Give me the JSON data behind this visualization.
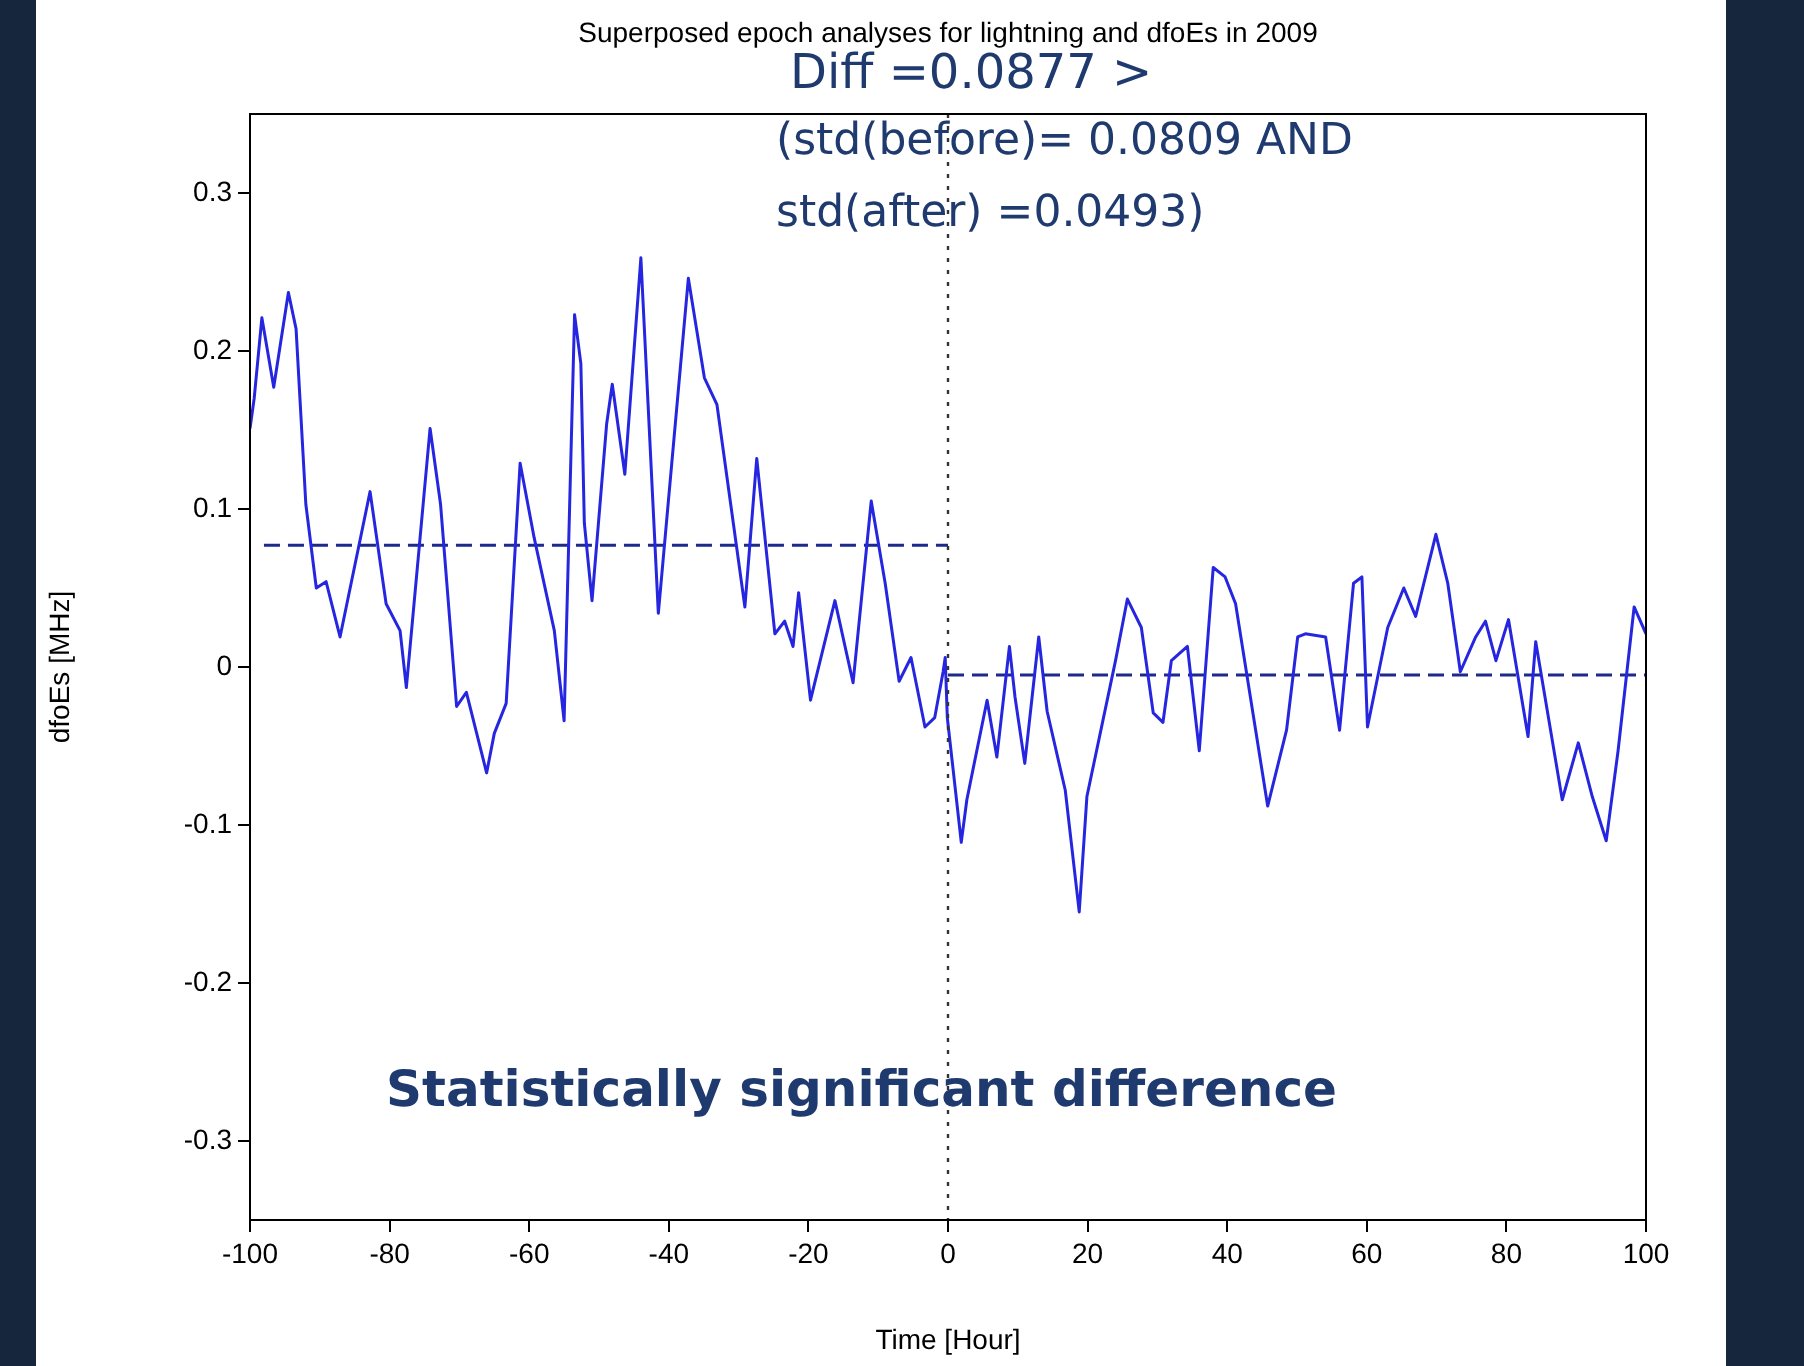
{
  "chart_data": {
    "type": "line",
    "title": "Superposed epoch analyses for lightning and dfoEs in 2009",
    "xlabel": "Time [Hour]",
    "ylabel": "dfoEs [MHz]",
    "xlim": [
      -100,
      100
    ],
    "xticks": [
      -100,
      -80,
      -60,
      -40,
      -20,
      0,
      20,
      40,
      60,
      80,
      100
    ],
    "ylim": [
      -0.35,
      0.35
    ],
    "yticks": [
      -0.3,
      -0.2,
      -0.1,
      0,
      0.1,
      0.2,
      0.3
    ],
    "grid": false,
    "legend": false,
    "marker": "none",
    "series": [
      {
        "color": "#2626e0",
        "line_style": "solid",
        "x": [
          -100,
          -99.4,
          -98.3,
          -96.6,
          -94.5,
          -93.4,
          -92,
          -90.5,
          -89.1,
          -87.1,
          -82.8,
          -80.5,
          -78.5,
          -77.6,
          -74.2,
          -72.7,
          -70.4,
          -69,
          -66.1,
          -65,
          -63.3,
          -61.3,
          -59.3,
          -56.4,
          -55,
          -53.5,
          -52.6,
          -52.1,
          -51,
          -48.9,
          -48.1,
          -46.3,
          -44,
          -41.5,
          -37.2,
          -34.9,
          -33.1,
          -29.1,
          -27.4,
          -24.8,
          -23.4,
          -22.2,
          -21.4,
          -19.7,
          -16.2,
          -13.6,
          -11,
          -9,
          -7,
          -5.3,
          -3.3,
          -1.9,
          -0.7,
          -0.4,
          -0.1,
          1.9,
          2.7,
          5.6,
          7,
          8.8,
          9.6,
          11,
          13,
          14.2,
          16.8,
          18.8,
          19.9,
          24,
          25.7,
          27.7,
          29.4,
          30.8,
          32,
          34.3,
          36,
          38,
          39.7,
          41.2,
          45.8,
          48.5,
          50.1,
          51.2,
          54.1,
          56.1,
          58.1,
          59.3,
          60.1,
          63,
          65.3,
          67,
          69.9,
          71.6,
          73.4,
          75.6,
          77,
          78.5,
          80.3,
          83.1,
          84.2,
          88,
          90.3,
          92.3,
          94.3,
          96,
          98.3,
          100
        ],
        "values": [
          0.151,
          0.17,
          0.221,
          0.177,
          0.237,
          0.214,
          0.103,
          0.05,
          0.054,
          0.019,
          0.111,
          0.04,
          0.023,
          -0.013,
          0.151,
          0.103,
          -0.025,
          -0.016,
          -0.067,
          -0.042,
          -0.023,
          0.129,
          0.082,
          0.023,
          -0.034,
          0.223,
          0.192,
          0.091,
          0.042,
          0.154,
          0.179,
          0.122,
          0.259,
          0.034,
          0.246,
          0.183,
          0.166,
          0.038,
          0.132,
          0.021,
          0.029,
          0.013,
          0.047,
          -0.021,
          0.042,
          -0.01,
          0.105,
          0.053,
          -0.009,
          0.006,
          -0.038,
          -0.032,
          -0.003,
          0.006,
          -0.032,
          -0.111,
          -0.084,
          -0.021,
          -0.057,
          0.013,
          -0.019,
          -0.061,
          0.019,
          -0.028,
          -0.078,
          -0.155,
          -0.082,
          0.004,
          0.043,
          0.025,
          -0.029,
          -0.035,
          0.004,
          0.013,
          -0.053,
          0.063,
          0.057,
          0.04,
          -0.088,
          -0.04,
          0.019,
          0.021,
          0.019,
          -0.04,
          0.053,
          0.057,
          -0.038,
          0.025,
          0.05,
          0.032,
          0.084,
          0.053,
          -0.003,
          0.019,
          0.029,
          0.004,
          0.03,
          -0.044,
          0.016,
          -0.084,
          -0.048,
          -0.082,
          -0.11,
          -0.053,
          0.038,
          0.021
        ]
      },
      {
        "color": "#1c2a8c",
        "line_style": "dashed",
        "x": [
          -98,
          0
        ],
        "values": [
          0.077,
          0.077
        ]
      },
      {
        "color": "#1c2a8c",
        "line_style": "dashed",
        "x": [
          0,
          100
        ],
        "values": [
          -0.005,
          -0.005
        ]
      }
    ],
    "ref_lines": [
      {
        "axis": "x",
        "value": 0,
        "color": "#333333",
        "line_style": "dotted"
      }
    ],
    "annotations": [
      "Diff =0.0877 >",
      "(std(before)= 0.0809 AND",
      "std(after) =0.0493)",
      "Statistically significant difference"
    ]
  }
}
